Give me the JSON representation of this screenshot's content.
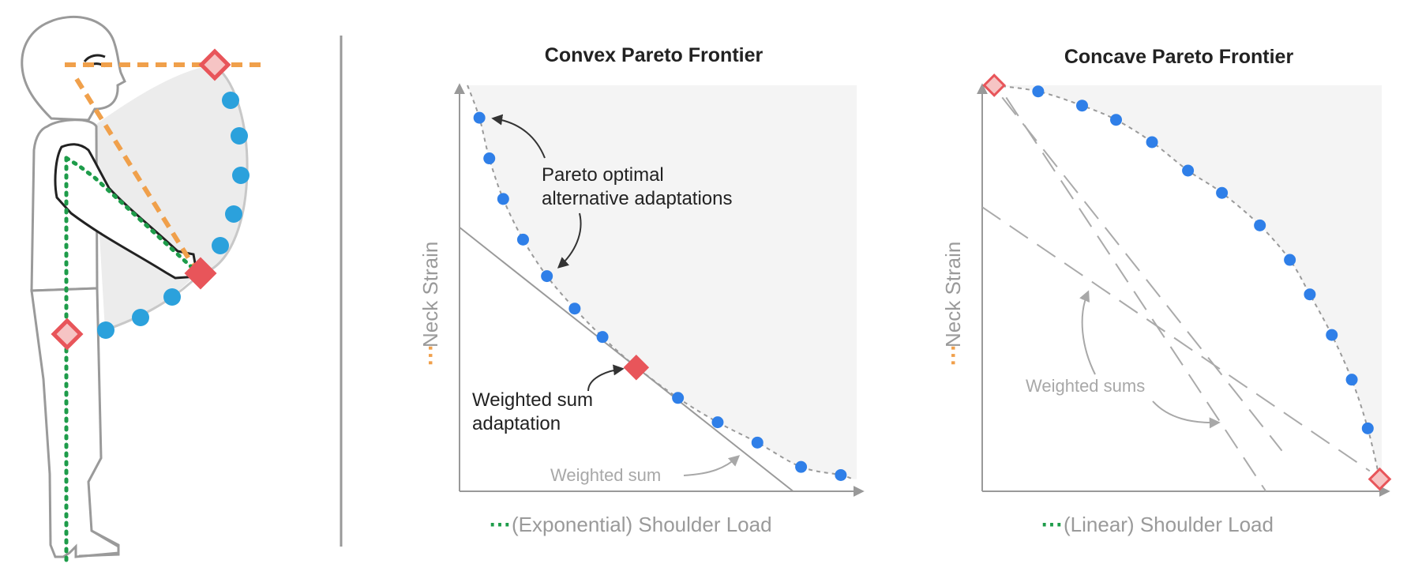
{
  "colors": {
    "neck": "#f0a04b",
    "shoulder": "#1e9c4a",
    "point_blue": "#2f7fe8",
    "figure_blue": "#2ba1dc",
    "diamond_red": "#e8555a",
    "diamond_pale": "#f6c4c4",
    "region_fill": "#f3f3f3",
    "axis_gray": "#999999",
    "text_dark": "#222222",
    "text_gray": "#a8a8a8"
  },
  "icons": {
    "person": "standing-person-side-view",
    "neck_line": "orange-dashed-line",
    "shoulder_line": "green-dotted-line",
    "selected": "red-diamond",
    "extreme": "pale-red-diamond",
    "alternative": "blue-circle"
  },
  "illustration": {
    "neck_marker": "---",
    "shoulder_marker": "---"
  },
  "charts": {
    "convex": {
      "title": "Convex Pareto Frontier",
      "ylabel": "Neck Strain",
      "xlabel": "(Exponential) Shoulder Load",
      "annotation_pareto_line1": "Pareto optimal",
      "annotation_pareto_line2": "alternative adaptations",
      "annotation_ws_line1": "Weighted sum",
      "annotation_ws_line2": "adaptation",
      "annotation_ws_line": "Weighted sum"
    },
    "concave": {
      "title": "Concave Pareto Frontier",
      "ylabel": "Neck Strain",
      "xlabel": "(Linear) Shoulder Load",
      "annotation_ws": "Weighted sums"
    }
  },
  "chart_data": [
    {
      "type": "scatter",
      "title": "Convex Pareto Frontier",
      "xlabel": "(Exponential) Shoulder Load",
      "ylabel": "Neck Strain",
      "xlim": [
        0,
        1
      ],
      "ylim": [
        0,
        1
      ],
      "grid": false,
      "series": [
        {
          "values": [
            [
              0.05,
              0.92
            ],
            [
              0.075,
              0.82
            ],
            [
              0.11,
              0.72
            ],
            [
              0.16,
              0.62
            ],
            [
              0.22,
              0.53
            ],
            [
              0.29,
              0.45
            ],
            [
              0.36,
              0.38
            ],
            [
              0.44,
              0.31
            ],
            [
              0.55,
              0.23
            ],
            [
              0.65,
              0.17
            ],
            [
              0.75,
              0.12
            ],
            [
              0.86,
              0.06
            ],
            [
              0.96,
              0.04
            ]
          ]
        },
        {
          "values": [
            [
              0.445,
              0.305
            ]
          ]
        }
      ],
      "weighted_sum_line": [
        [
          0,
          0.65
        ],
        [
          0.84,
          0
        ]
      ]
    },
    {
      "type": "scatter",
      "title": "Concave Pareto Frontier",
      "xlabel": "(Linear) Shoulder Load",
      "ylabel": "Neck Strain",
      "xlim": [
        0,
        1
      ],
      "ylim": [
        0,
        1
      ],
      "grid": false,
      "series": [
        {
          "values": [
            [
              0.14,
              0.985
            ],
            [
              0.25,
              0.95
            ],
            [
              0.335,
              0.915
            ],
            [
              0.425,
              0.86
            ],
            [
              0.515,
              0.79
            ],
            [
              0.6,
              0.735
            ],
            [
              0.695,
              0.655
            ],
            [
              0.77,
              0.57
            ],
            [
              0.82,
              0.485
            ],
            [
              0.875,
              0.385
            ],
            [
              0.925,
              0.275
            ],
            [
              0.965,
              0.155
            ]
          ]
        },
        {
          "values": [
            [
              0.03,
              1.0
            ],
            [
              0.995,
              0.03
            ]
          ]
        }
      ],
      "weighted_sum_lines": [
        [
          [
            0.06,
            0.97
          ],
          [
            0.71,
            0.0
          ]
        ],
        [
          [
            0.0,
            0.7
          ],
          [
            0.97,
            0.05
          ]
        ],
        [
          [
            0.05,
            0.97
          ],
          [
            0.75,
            0.1
          ]
        ]
      ]
    }
  ]
}
